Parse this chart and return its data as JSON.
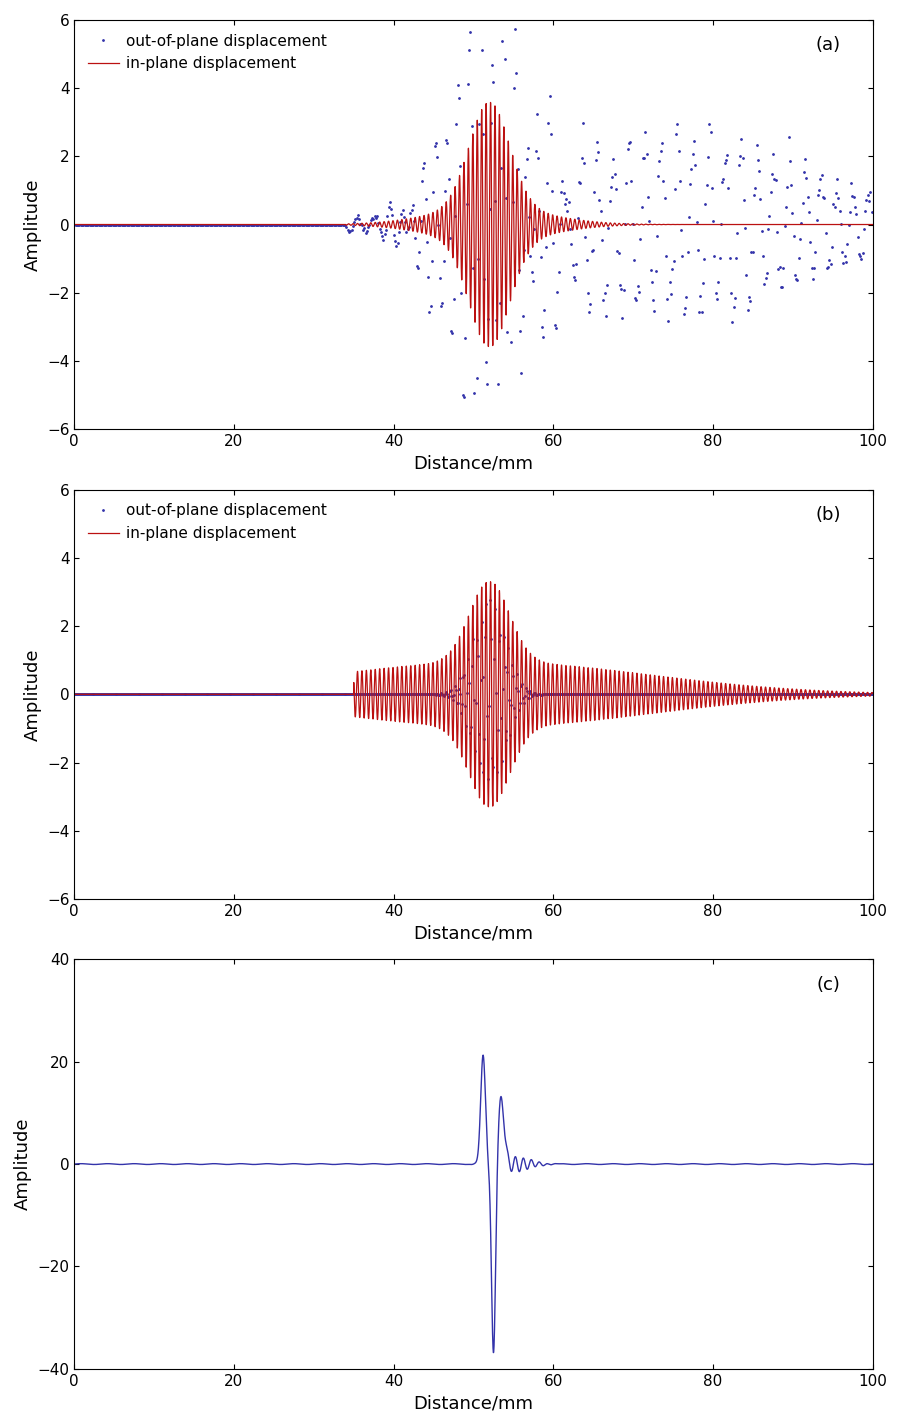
{
  "xlim": [
    0,
    100
  ],
  "ylim_ab": [
    -6,
    6
  ],
  "ylim_c": [
    -40,
    40
  ],
  "yticks_ab": [
    -6,
    -4,
    -2,
    0,
    2,
    4,
    6
  ],
  "yticks_c": [
    -40,
    -20,
    0,
    20,
    40
  ],
  "xticks": [
    0,
    20,
    40,
    60,
    80,
    100
  ],
  "xlabel": "Distance/mm",
  "ylabel": "Amplitude",
  "label_outofplane": "out-of-plane displacement",
  "label_inplane": "in-plane displacement",
  "color_blue": "#3333aa",
  "color_red": "#bb1111",
  "panel_labels": [
    "(a)",
    "(b)",
    "(c)"
  ],
  "figsize": [
    9.01,
    14.26
  ],
  "dpi": 100
}
